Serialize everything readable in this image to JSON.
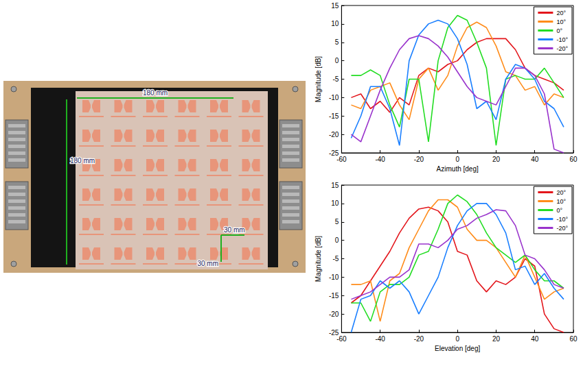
{
  "figure": {
    "photo_labels": {
      "array_width": "180 mm",
      "array_height": "180 mm",
      "element_spacing_x": "30 mm",
      "element_spacing_y": "30 mm"
    }
  },
  "chart_data": [
    {
      "type": "line",
      "x_label": "Azimuth [deg]",
      "y_label": "Magnitude [dB]",
      "xlim": [
        -60,
        60
      ],
      "xticks": [
        -60,
        -40,
        -20,
        0,
        20,
        40,
        60
      ],
      "ylim": [
        -25,
        15
      ],
      "yticks": [
        -25,
        -20,
        -15,
        -10,
        -5,
        0,
        5,
        10,
        15
      ],
      "grid": false,
      "legend": "upper right",
      "x": [
        -55,
        -50,
        -45,
        -40,
        -35,
        -30,
        -25,
        -20,
        -15,
        -10,
        -5,
        0,
        5,
        10,
        15,
        20,
        25,
        30,
        35,
        40,
        45,
        50,
        55
      ],
      "series": [
        {
          "name": "20°",
          "color": "#e3161c",
          "values": [
            -10,
            -9,
            -13,
            -11,
            -14,
            -10,
            -12,
            -4,
            -2,
            -3,
            -1,
            0,
            3,
            5,
            6,
            6,
            6,
            3,
            -2,
            -4,
            -5,
            -6,
            -8
          ]
        },
        {
          "name": "10°",
          "color": "#ff8c1a",
          "values": [
            -12,
            -13,
            -8,
            -7,
            -6,
            -12,
            -16,
            -5,
            -2,
            -8,
            -4,
            4,
            9,
            10.5,
            9,
            4,
            -3,
            -4,
            -8,
            -7,
            -12,
            -9,
            -10
          ]
        },
        {
          "name": "0°",
          "color": "#22dd22",
          "values": [
            -4,
            -4,
            -2.5,
            -4,
            -12,
            -18,
            -5,
            -5,
            -22,
            0,
            9,
            12.3,
            11,
            5,
            -2,
            -23,
            -5,
            -4,
            -5,
            -5,
            -2,
            -6,
            -10
          ]
        },
        {
          "name": "-10°",
          "color": "#1a7fff",
          "values": [
            -21,
            -15,
            -7,
            -7,
            -13,
            -23,
            0,
            7,
            10,
            11,
            10,
            6,
            -1,
            -13,
            -11,
            -16,
            -5,
            -1,
            -2,
            -5,
            -11,
            -13,
            -18
          ]
        },
        {
          "name": "-20°",
          "color": "#9933cc",
          "values": [
            -20,
            -22,
            -15,
            -8,
            -2,
            3,
            6,
            6.8,
            6,
            4,
            1,
            -3,
            -7,
            -10,
            -11,
            -12,
            -7,
            -2,
            -2,
            -4,
            -9,
            -24,
            -25
          ]
        }
      ]
    },
    {
      "type": "line",
      "x_label": "Elevation [deg]",
      "y_label": "Magnitude [dB]",
      "xlim": [
        -60,
        60
      ],
      "xticks": [
        -60,
        -40,
        -20,
        0,
        20,
        40,
        60
      ],
      "ylim": [
        -25,
        15
      ],
      "yticks": [
        -25,
        -20,
        -15,
        -10,
        -5,
        0,
        5,
        10,
        15
      ],
      "grid": false,
      "legend": "upper right",
      "x": [
        -55,
        -50,
        -45,
        -40,
        -35,
        -30,
        -25,
        -20,
        -15,
        -10,
        -5,
        0,
        5,
        10,
        15,
        20,
        25,
        30,
        35,
        40,
        45,
        50,
        55
      ],
      "series": [
        {
          "name": "20°",
          "color": "#e3161c",
          "values": [
            -17,
            -15,
            -11,
            -7,
            -3,
            2,
            6,
            8.5,
            9,
            8,
            5,
            -3,
            -4,
            -11,
            -14,
            -11,
            -12,
            -10,
            -5,
            -7,
            -20,
            -24,
            -25
          ]
        },
        {
          "name": "10°",
          "color": "#ff8c1a",
          "values": [
            -12,
            -12,
            -11,
            -22,
            -11,
            -9,
            -2,
            3,
            8,
            11,
            11,
            9,
            3,
            0,
            0,
            -2,
            -6,
            -10,
            -4,
            -10,
            -16,
            -14,
            -13
          ]
        },
        {
          "name": "0°",
          "color": "#22dd22",
          "values": [
            -17,
            -17,
            -22,
            -14,
            -12,
            -12,
            -10,
            -4,
            -3,
            3,
            10,
            12.3,
            10.5,
            7,
            2,
            -2,
            -4,
            -6,
            -4,
            -8,
            -11,
            -11,
            -13
          ]
        },
        {
          "name": "-10°",
          "color": "#1a7fff",
          "values": [
            -25,
            -16,
            -15,
            -11,
            -13,
            -11,
            -14,
            -20,
            -15,
            -10,
            -2,
            4,
            8,
            10,
            10,
            7,
            2,
            -8,
            -7,
            -12,
            -9,
            -13,
            -16
          ]
        },
        {
          "name": "-20°",
          "color": "#9933cc",
          "values": [
            -16,
            -15,
            -14,
            -12,
            -10,
            -10,
            -8,
            -1,
            -1,
            -2,
            0,
            3,
            4,
            6,
            7,
            8.3,
            8,
            4,
            -4,
            -5,
            -8,
            -12,
            -13
          ]
        }
      ]
    }
  ]
}
